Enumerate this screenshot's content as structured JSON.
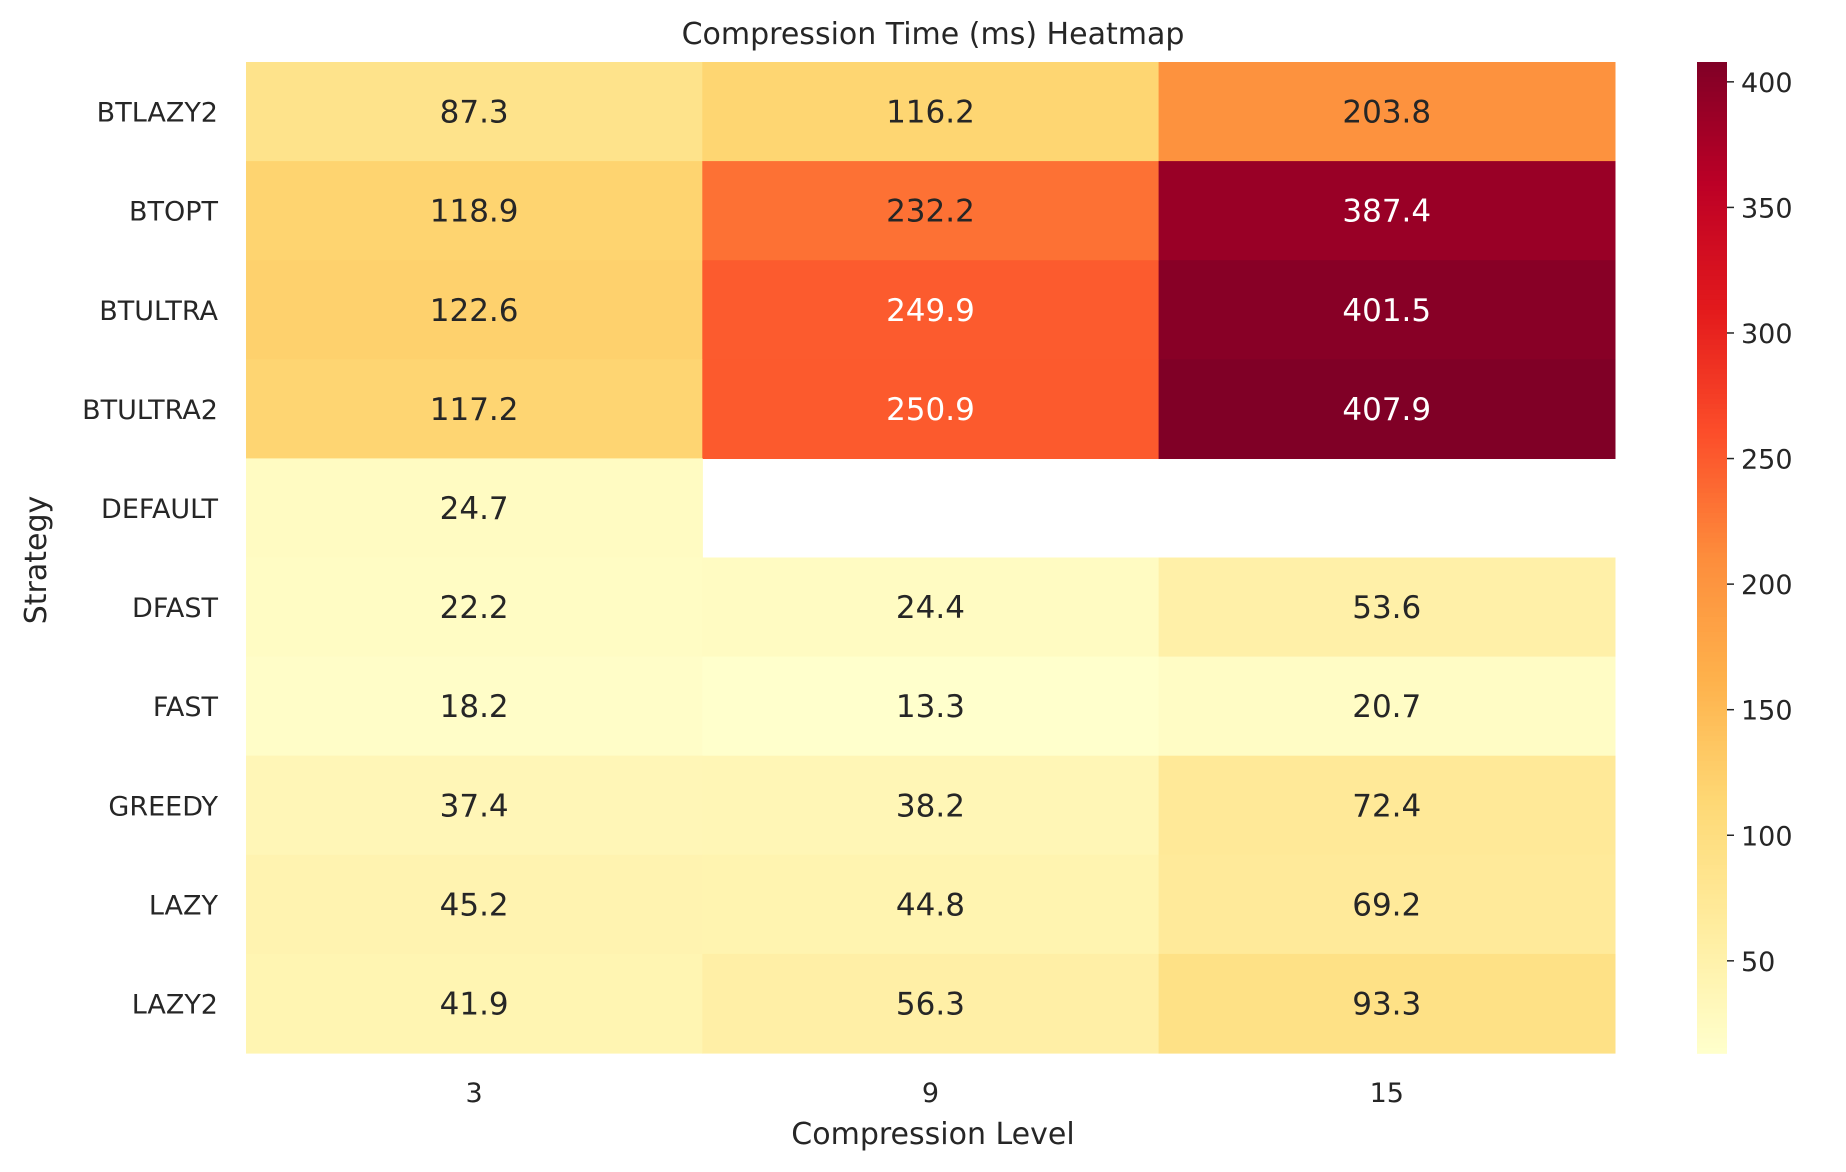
{
  "chart_data": {
    "type": "heatmap",
    "title": "Compression Time (ms) Heatmap",
    "xlabel": "Compression Level",
    "ylabel": "Strategy",
    "x_categories": [
      "3",
      "9",
      "15"
    ],
    "y_categories": [
      "BTLAZY2",
      "BTOPT",
      "BTULTRA",
      "BTULTRA2",
      "DEFAULT",
      "DFAST",
      "FAST",
      "GREEDY",
      "LAZY",
      "LAZY2"
    ],
    "values": [
      [
        87.3,
        116.2,
        203.8
      ],
      [
        118.9,
        232.2,
        387.4
      ],
      [
        122.6,
        249.9,
        401.5
      ],
      [
        117.2,
        250.9,
        407.9
      ],
      [
        24.7,
        null,
        null
      ],
      [
        22.2,
        24.4,
        53.6
      ],
      [
        18.2,
        13.3,
        20.7
      ],
      [
        37.4,
        38.2,
        72.4
      ],
      [
        45.2,
        44.8,
        69.2
      ],
      [
        41.9,
        56.3,
        93.3
      ]
    ],
    "colormap": "YlOrRd",
    "color_range": [
      13.3,
      407.9
    ],
    "colorbar_ticks": [
      50,
      100,
      150,
      200,
      250,
      300,
      350,
      400
    ],
    "grid": false,
    "legend": "colorbar-right"
  }
}
